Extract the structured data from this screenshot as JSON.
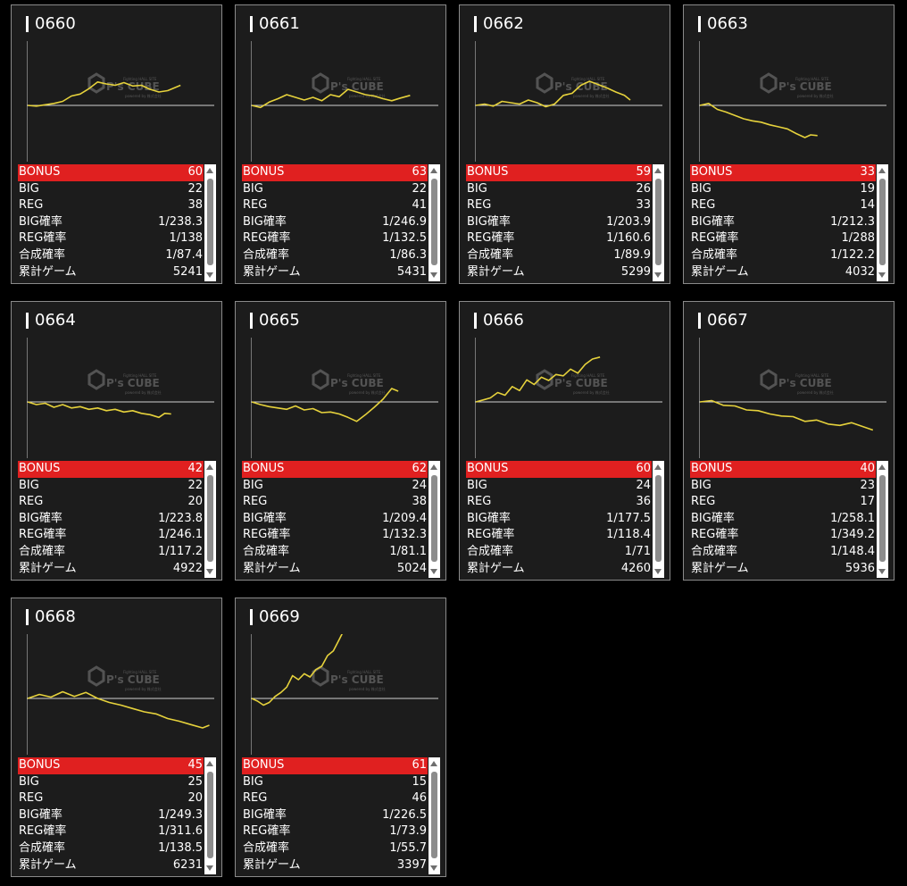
{
  "labels": {
    "bonus": "BONUS",
    "big": "BIG",
    "reg": "REG",
    "big_prob": "BIG確率",
    "reg_prob": "REG確率",
    "combined_prob": "合成確率",
    "total_games": "累計ゲーム"
  },
  "watermark": {
    "brand": "P's CUBE",
    "tagline": "Fighting HALL SITE",
    "sub": "powered by 株式会社"
  },
  "colors": {
    "page_bg": "#000000",
    "card_bg": "#1c1c1c",
    "card_border": "#8a8a8a",
    "bonus_row": "#e02020",
    "chart_line": "#e6d23c",
    "baseline": "#cfcfcf"
  },
  "machines": [
    {
      "id": "0660",
      "bonus": "60",
      "big": "22",
      "reg": "38",
      "big_prob": "1/238.3",
      "reg_prob": "1/138",
      "combined_prob": "1/87.4",
      "total_games": "5241",
      "chart_data": {
        "type": "line",
        "x": [
          0,
          300,
          600,
          900,
          1200,
          1500,
          1800,
          2100,
          2400,
          2700,
          3000,
          3300,
          3600,
          3900,
          4200,
          4500,
          4800,
          5241
        ],
        "y": [
          0,
          -100,
          100,
          300,
          600,
          1400,
          1700,
          2500,
          3500,
          3200,
          3000,
          3400,
          2900,
          3000,
          2400,
          2000,
          2200,
          3000
        ]
      }
    },
    {
      "id": "0661",
      "bonus": "63",
      "big": "22",
      "reg": "41",
      "big_prob": "1/246.9",
      "reg_prob": "1/132.5",
      "combined_prob": "1/86.3",
      "total_games": "5431",
      "chart_data": {
        "type": "line",
        "x": [
          0,
          300,
          600,
          900,
          1200,
          1500,
          1800,
          2100,
          2400,
          2700,
          3000,
          3300,
          3600,
          3900,
          4200,
          4500,
          4800,
          5100,
          5431
        ],
        "y": [
          0,
          -300,
          500,
          1000,
          1600,
          1200,
          800,
          1200,
          700,
          1600,
          1300,
          2400,
          2000,
          1600,
          1400,
          1000,
          700,
          1100,
          1500
        ]
      }
    },
    {
      "id": "0662",
      "bonus": "59",
      "big": "26",
      "reg": "33",
      "big_prob": "1/203.9",
      "reg_prob": "1/160.6",
      "combined_prob": "1/89.9",
      "total_games": "5299",
      "chart_data": {
        "type": "line",
        "x": [
          0,
          300,
          600,
          900,
          1200,
          1500,
          1800,
          2100,
          2400,
          2700,
          3000,
          3300,
          3600,
          3900,
          4200,
          4500,
          4800,
          5100,
          5299
        ],
        "y": [
          0,
          200,
          -100,
          600,
          400,
          200,
          800,
          400,
          -200,
          200,
          1500,
          1800,
          3000,
          3600,
          3100,
          2600,
          2000,
          1500,
          800
        ]
      }
    },
    {
      "id": "0663",
      "bonus": "33",
      "big": "19",
      "reg": "14",
      "big_prob": "1/212.3",
      "reg_prob": "1/288",
      "combined_prob": "1/122.2",
      "total_games": "4032",
      "chart_data": {
        "type": "line",
        "x": [
          0,
          300,
          600,
          900,
          1200,
          1500,
          1800,
          2100,
          2400,
          2700,
          3000,
          3300,
          3600,
          3800,
          4032
        ],
        "y": [
          0,
          300,
          -600,
          -1000,
          -1500,
          -2000,
          -2300,
          -2500,
          -2900,
          -3200,
          -3500,
          -4200,
          -4800,
          -4400,
          -4500
        ]
      }
    },
    {
      "id": "0664",
      "bonus": "42",
      "big": "22",
      "reg": "20",
      "big_prob": "1/223.8",
      "reg_prob": "1/246.1",
      "combined_prob": "1/117.2",
      "total_games": "4922",
      "chart_data": {
        "type": "line",
        "x": [
          0,
          300,
          600,
          900,
          1200,
          1500,
          1800,
          2100,
          2400,
          2700,
          3000,
          3300,
          3600,
          3900,
          4200,
          4500,
          4700,
          4922
        ],
        "y": [
          0,
          -400,
          -200,
          -800,
          -400,
          -900,
          -700,
          -1100,
          -900,
          -1300,
          -1100,
          -1500,
          -1300,
          -1700,
          -1900,
          -2300,
          -1700,
          -1800
        ]
      }
    },
    {
      "id": "0665",
      "bonus": "62",
      "big": "24",
      "reg": "38",
      "big_prob": "1/209.4",
      "reg_prob": "1/132.3",
      "combined_prob": "1/81.1",
      "total_games": "5024",
      "chart_data": {
        "type": "line",
        "x": [
          0,
          300,
          600,
          900,
          1200,
          1500,
          1800,
          2100,
          2400,
          2700,
          3000,
          3300,
          3600,
          3900,
          4200,
          4500,
          4800,
          5024
        ],
        "y": [
          0,
          -400,
          -700,
          -900,
          -1100,
          -600,
          -1200,
          -1000,
          -1600,
          -1500,
          -1800,
          -2300,
          -2900,
          -1900,
          -800,
          400,
          2000,
          1600
        ]
      }
    },
    {
      "id": "0666",
      "bonus": "60",
      "big": "24",
      "reg": "36",
      "big_prob": "1/177.5",
      "reg_prob": "1/118.4",
      "combined_prob": "1/71",
      "total_games": "4260",
      "chart_data": {
        "type": "line",
        "x": [
          0,
          250,
          500,
          750,
          1000,
          1250,
          1500,
          1750,
          2000,
          2250,
          2500,
          2750,
          3000,
          3250,
          3500,
          3750,
          4000,
          4260
        ],
        "y": [
          0,
          300,
          600,
          1400,
          1000,
          2300,
          1700,
          3300,
          2600,
          3700,
          3200,
          4100,
          3900,
          4900,
          4300,
          5600,
          6400,
          6700
        ]
      }
    },
    {
      "id": "0667",
      "bonus": "40",
      "big": "23",
      "reg": "17",
      "big_prob": "1/258.1",
      "reg_prob": "1/349.2",
      "combined_prob": "1/148.4",
      "total_games": "5936",
      "chart_data": {
        "type": "line",
        "x": [
          0,
          400,
          800,
          1200,
          1600,
          2000,
          2400,
          2800,
          3200,
          3600,
          4000,
          4400,
          4800,
          5200,
          5600,
          5936
        ],
        "y": [
          0,
          200,
          -500,
          -600,
          -1200,
          -1300,
          -1800,
          -2100,
          -2200,
          -2900,
          -2700,
          -3300,
          -3500,
          -3100,
          -3700,
          -4200
        ]
      }
    },
    {
      "id": "0668",
      "bonus": "45",
      "big": "25",
      "reg": "20",
      "big_prob": "1/249.3",
      "reg_prob": "1/311.6",
      "combined_prob": "1/138.5",
      "total_games": "6231",
      "chart_data": {
        "type": "line",
        "x": [
          0,
          400,
          800,
          1200,
          1600,
          2000,
          2400,
          2800,
          3200,
          3600,
          4000,
          4400,
          4800,
          5200,
          5600,
          6000,
          6231
        ],
        "y": [
          0,
          600,
          200,
          1000,
          300,
          900,
          0,
          -600,
          -1000,
          -1500,
          -2000,
          -2300,
          -3000,
          -3400,
          -3900,
          -4400,
          -4000
        ]
      }
    },
    {
      "id": "0669",
      "bonus": "61",
      "big": "15",
      "reg": "46",
      "big_prob": "1/226.5",
      "reg_prob": "1/73.9",
      "combined_prob": "1/55.7",
      "total_games": "3397",
      "chart_data": {
        "type": "line",
        "x": [
          0,
          200,
          400,
          600,
          800,
          1000,
          1200,
          1400,
          1600,
          1800,
          2000,
          2200,
          2400,
          2600,
          2800,
          3000,
          3200,
          3397
        ],
        "y": [
          0,
          -400,
          -1000,
          -600,
          300,
          900,
          1700,
          3400,
          2800,
          3700,
          3200,
          4300,
          4800,
          6400,
          7100,
          8800,
          10500,
          12100
        ]
      }
    }
  ]
}
